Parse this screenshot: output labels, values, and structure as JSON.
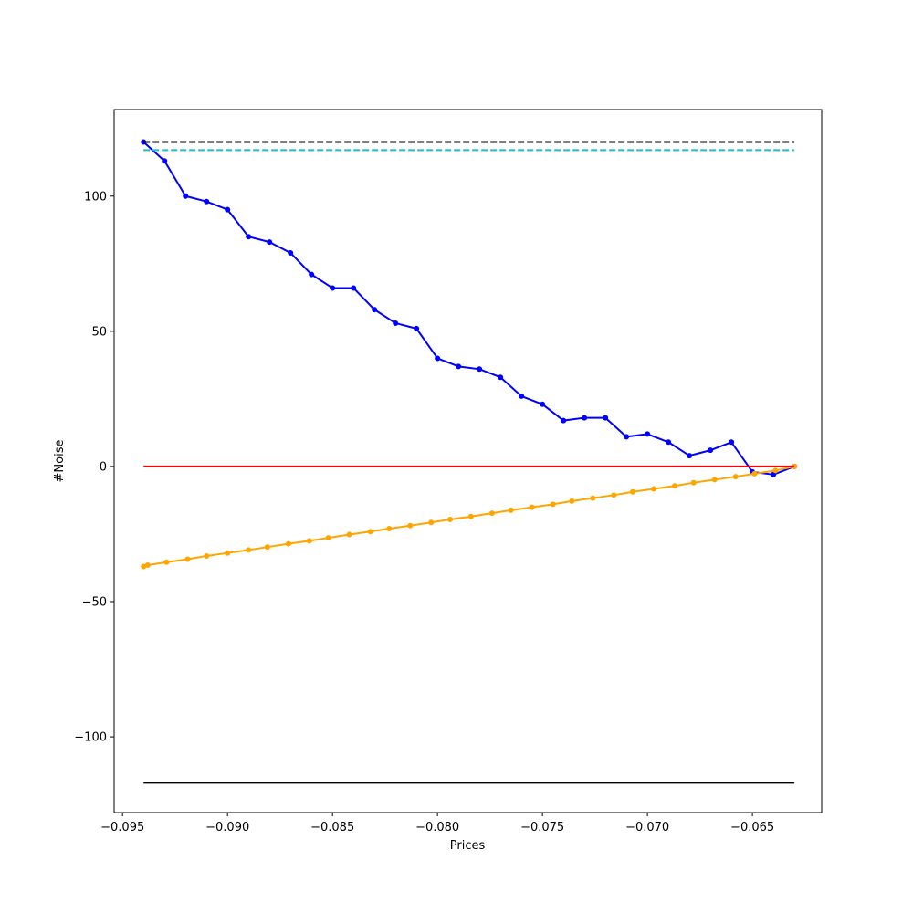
{
  "chart_data": {
    "type": "line",
    "xlabel": "Prices",
    "ylabel": "#Noise",
    "xlim": [
      -0.0954,
      -0.0617
    ],
    "ylim": [
      -128,
      132
    ],
    "xticks": [
      -0.095,
      -0.09,
      -0.085,
      -0.08,
      -0.075,
      -0.07,
      -0.065
    ],
    "xtick_labels": [
      "−0.095",
      "−0.090",
      "−0.085",
      "−0.080",
      "−0.075",
      "−0.070",
      "−0.065"
    ],
    "yticks": [
      -100,
      -50,
      0,
      50,
      100
    ],
    "ytick_labels": [
      "−100",
      "−50",
      "0",
      "50",
      "100"
    ],
    "grid": false,
    "series": [
      {
        "kind": "line-markers",
        "color": "#0000ff",
        "x": [
          -0.094,
          -0.093,
          -0.092,
          -0.091,
          -0.09,
          -0.089,
          -0.088,
          -0.087,
          -0.086,
          -0.085,
          -0.084,
          -0.083,
          -0.082,
          -0.081,
          -0.08,
          -0.079,
          -0.078,
          -0.077,
          -0.076,
          -0.075,
          -0.074,
          -0.073,
          -0.072,
          -0.071,
          -0.07,
          -0.069,
          -0.068,
          -0.067,
          -0.066,
          -0.065,
          -0.064,
          -0.063
        ],
        "y": [
          120,
          113,
          100,
          98,
          95,
          85,
          83,
          79,
          71,
          66,
          66,
          58,
          53,
          51,
          40,
          37,
          36,
          33,
          26,
          23,
          17,
          18,
          18,
          11,
          12,
          9,
          4,
          6,
          9,
          -2,
          -3,
          0
        ]
      },
      {
        "kind": "line-markers",
        "color": "#ffa500",
        "x": [
          -0.094,
          -0.0938,
          -0.0929,
          -0.0919,
          -0.091,
          -0.09,
          -0.089,
          -0.0881,
          -0.0871,
          -0.0861,
          -0.0852,
          -0.0842,
          -0.0832,
          -0.0823,
          -0.0813,
          -0.0803,
          -0.0794,
          -0.0784,
          -0.0774,
          -0.0765,
          -0.0755,
          -0.0745,
          -0.0736,
          -0.0726,
          -0.0716,
          -0.0707,
          -0.0697,
          -0.0687,
          -0.0678,
          -0.0668,
          -0.0658,
          -0.0649,
          -0.0639,
          -0.063
        ],
        "y": [
          -37.0,
          -36.5,
          -35.4,
          -34.3,
          -33.1,
          -32.0,
          -30.9,
          -29.8,
          -28.6,
          -27.5,
          -26.4,
          -25.2,
          -24.1,
          -23.0,
          -21.9,
          -20.7,
          -19.6,
          -18.5,
          -17.3,
          -16.2,
          -15.1,
          -14.0,
          -12.8,
          -11.7,
          -10.6,
          -9.4,
          -8.3,
          -7.2,
          -6.0,
          -4.9,
          -3.8,
          -2.7,
          -1.5,
          0.0
        ]
      },
      {
        "kind": "hline",
        "color": "#000000",
        "style": "dashed",
        "y": 120,
        "x": [
          -0.094,
          -0.063
        ]
      },
      {
        "kind": "hline",
        "color": "#17becf",
        "style": "dashed",
        "y": 117,
        "x": [
          -0.094,
          -0.063
        ]
      },
      {
        "kind": "hline",
        "color": "#ff0000",
        "style": "solid",
        "y": 0,
        "x": [
          -0.094,
          -0.063
        ]
      },
      {
        "kind": "hline",
        "color": "#000000",
        "style": "solid",
        "y": -117,
        "x": [
          -0.094,
          -0.063
        ]
      }
    ]
  }
}
